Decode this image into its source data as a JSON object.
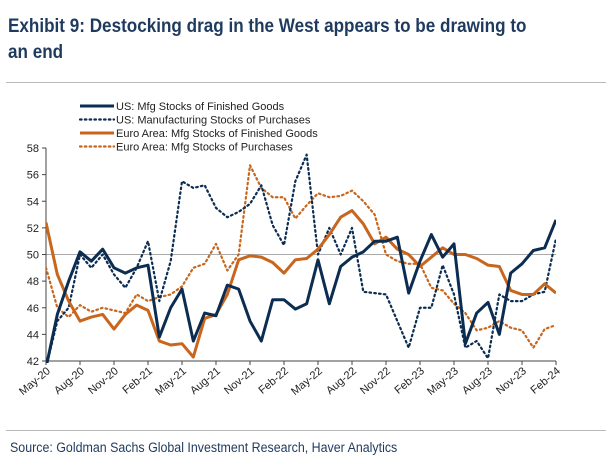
{
  "title": "Exhibit 9: Destocking drag in the West appears to be drawing to an end",
  "source": "Source: Goldman Sachs Global Investment Research, Haver Analytics",
  "chart_data": {
    "type": "line",
    "title": "Exhibit 9: Destocking drag in the West appears to be drawing to an end",
    "xlabel": "",
    "ylabel": "",
    "ylim": [
      42,
      58
    ],
    "yticks": [
      42,
      44,
      46,
      48,
      50,
      52,
      54,
      56,
      58
    ],
    "reference_line": 50,
    "grid": false,
    "legend_position": "top-left",
    "x_tick_labels": [
      "May-20",
      "Aug-20",
      "Nov-20",
      "Feb-21",
      "May-21",
      "Aug-21",
      "Nov-21",
      "Feb-22",
      "May-22",
      "Aug-22",
      "Nov-22",
      "Feb-23",
      "May-23",
      "Aug-23",
      "Nov-23",
      "Feb-24"
    ],
    "x": [
      "May-20",
      "Jun-20",
      "Jul-20",
      "Aug-20",
      "Sep-20",
      "Oct-20",
      "Nov-20",
      "Dec-20",
      "Jan-21",
      "Feb-21",
      "Mar-21",
      "Apr-21",
      "May-21",
      "Jun-21",
      "Jul-21",
      "Aug-21",
      "Sep-21",
      "Oct-21",
      "Nov-21",
      "Dec-21",
      "Jan-22",
      "Feb-22",
      "Mar-22",
      "Apr-22",
      "May-22",
      "Jun-22",
      "Jul-22",
      "Aug-22",
      "Sep-22",
      "Oct-22",
      "Nov-22",
      "Dec-22",
      "Jan-23",
      "Feb-23",
      "Mar-23",
      "Apr-23",
      "May-23",
      "Jun-23",
      "Jul-23",
      "Aug-23",
      "Sep-23",
      "Oct-23",
      "Nov-23",
      "Dec-23",
      "Jan-24",
      "Feb-24"
    ],
    "series": [
      {
        "name": "US: Mfg Stocks of Finished Goods",
        "color": "#0c2d52",
        "style": "solid",
        "values": [
          41.5,
          45.5,
          48.0,
          50.2,
          49.5,
          50.4,
          49.0,
          48.6,
          49.0,
          49.2,
          43.8,
          46.0,
          47.4,
          43.5,
          45.6,
          45.4,
          47.7,
          47.4,
          45.0,
          43.5,
          46.6,
          46.6,
          45.9,
          46.3,
          49.6,
          46.3,
          49.1,
          49.8,
          50.2,
          51.0,
          51.0,
          51.3,
          47.1,
          49.5,
          51.5,
          49.8,
          50.8,
          43.3,
          45.6,
          46.4,
          44.0,
          48.6,
          49.3,
          50.3,
          50.5,
          52.6
        ]
      },
      {
        "name": "US: Manufacturing Stocks of Purchases",
        "color": "#0c2d52",
        "style": "dotted",
        "values": [
          41.5,
          45.0,
          46.0,
          50.0,
          49.0,
          50.0,
          48.5,
          47.5,
          49.0,
          51.0,
          46.5,
          49.5,
          55.5,
          55.0,
          55.2,
          53.5,
          52.8,
          53.2,
          53.8,
          55.2,
          52.2,
          50.7,
          55.5,
          57.5,
          50.0,
          52.0,
          50.0,
          52.0,
          47.2,
          47.1,
          47.0,
          45.0,
          43.0,
          46.0,
          46.0,
          49.2,
          47.0,
          43.0,
          43.5,
          42.2,
          47.0,
          46.5,
          46.5,
          47.0,
          47.2,
          51.2
        ]
      },
      {
        "name": "Euro Area: Mfg Stocks of Finished Goods",
        "color": "#c8661e",
        "style": "solid",
        "values": [
          52.4,
          48.5,
          46.5,
          45.0,
          45.3,
          45.5,
          44.4,
          45.5,
          46.2,
          45.8,
          43.5,
          43.2,
          43.3,
          42.3,
          45.2,
          45.5,
          47.0,
          49.6,
          49.9,
          49.8,
          49.4,
          48.6,
          49.6,
          49.7,
          50.4,
          51.5,
          52.8,
          53.3,
          52.3,
          50.8,
          51.3,
          50.4,
          50.0,
          49.1,
          49.8,
          50.5,
          50.0,
          50.0,
          49.7,
          49.2,
          49.1,
          47.3,
          47.0,
          47.0,
          47.8,
          47.1
        ]
      },
      {
        "name": "Euro Area: Mfg Stocks of Purchases",
        "color": "#c8661e",
        "style": "dotted",
        "values": [
          49.0,
          46.0,
          45.3,
          46.2,
          45.7,
          46.0,
          45.8,
          45.6,
          47.0,
          46.5,
          46.8,
          47.0,
          47.6,
          49.0,
          49.3,
          50.8,
          48.8,
          50.0,
          56.7,
          55.0,
          54.3,
          54.3,
          52.7,
          53.7,
          54.6,
          54.3,
          54.4,
          54.8,
          54.0,
          53.0,
          50.0,
          49.5,
          49.3,
          49.3,
          47.5,
          47.3,
          46.3,
          45.6,
          44.3,
          44.5,
          45.0,
          44.5,
          44.3,
          43.0,
          44.4,
          44.7
        ]
      }
    ]
  }
}
